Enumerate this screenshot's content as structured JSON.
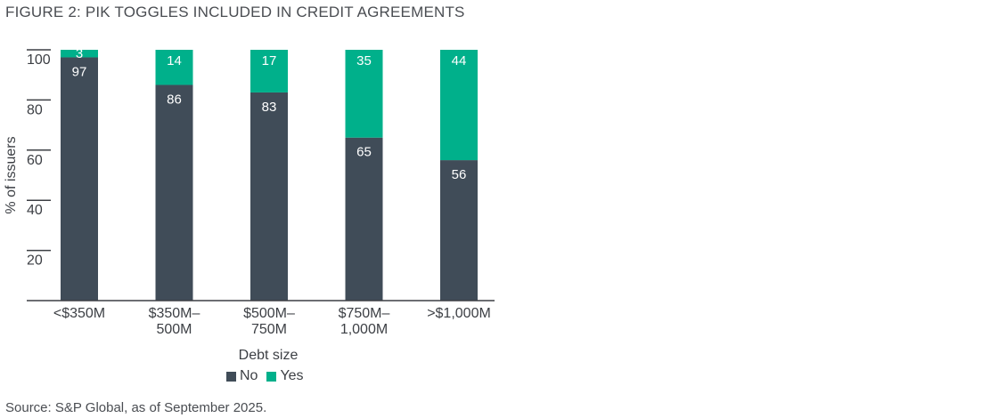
{
  "title": "FIGURE 2: PIK TOGGLES INCLUDED IN CREDIT AGREEMENTS",
  "source": "Source: S&P Global, as of September 2025.",
  "colors": {
    "No": "#404c58",
    "Yes": "#00b08b"
  },
  "chart_data": {
    "type": "bar",
    "stacked": true,
    "categories": [
      [
        "<$350M"
      ],
      [
        "$350M–",
        "500M"
      ],
      [
        "$500M–",
        "750M"
      ],
      [
        "$750M–",
        "1,000M"
      ],
      [
        ">$1,000M"
      ]
    ],
    "series": [
      {
        "name": "No",
        "values": [
          97,
          86,
          83,
          65,
          56
        ]
      },
      {
        "name": "Yes",
        "values": [
          3,
          14,
          17,
          35,
          44
        ]
      }
    ],
    "xlabel": "Debt size",
    "ylabel": "% of issuers",
    "ylim": [
      0,
      100
    ],
    "yticks": [
      20,
      40,
      60,
      80,
      100
    ],
    "legend": "bottom-center"
  }
}
